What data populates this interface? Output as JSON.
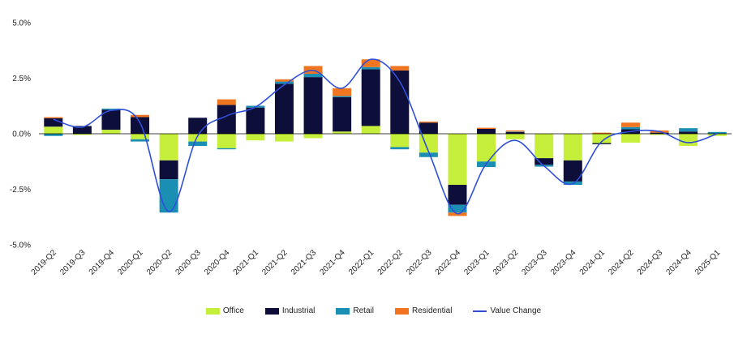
{
  "chart_data": {
    "type": "bar",
    "stacked": true,
    "categories": [
      "2019-Q2",
      "2019-Q3",
      "2019-Q4",
      "2020-Q1",
      "2020-Q2",
      "2020-Q3",
      "2020-Q4",
      "2021-Q1",
      "2021-Q2",
      "2021-Q3",
      "2021-Q4",
      "2022-Q1",
      "2022-Q2",
      "2022-Q3",
      "2022-Q4",
      "2023-Q1",
      "2023-Q2",
      "2023-Q3",
      "2023-Q4",
      "2024-Q1",
      "2024-Q2",
      "2024-Q3",
      "2024-Q4",
      "2025-Q1"
    ],
    "series": [
      {
        "name": "Office",
        "color": "#c5ef3b",
        "values": [
          0.32,
          -0.05,
          0.18,
          -0.25,
          -1.2,
          -0.35,
          -0.65,
          -0.3,
          -0.35,
          -0.2,
          0.1,
          0.35,
          -0.6,
          -0.85,
          -2.3,
          -1.25,
          -0.25,
          -1.1,
          -1.2,
          -0.42,
          -0.4,
          -0.05,
          -0.55,
          -0.1
        ]
      },
      {
        "name": "Industrial",
        "color": "#0d0f3a",
        "values": [
          0.38,
          0.35,
          0.9,
          0.75,
          -0.85,
          0.72,
          1.3,
          1.18,
          2.25,
          2.55,
          1.55,
          2.55,
          2.85,
          0.5,
          -0.9,
          0.22,
          0.08,
          -0.3,
          -0.95,
          -0.05,
          0.2,
          0.05,
          0.1,
          0.0
        ]
      },
      {
        "name": "Retail",
        "color": "#1a8fb3",
        "values": [
          -0.1,
          0.0,
          0.05,
          -0.1,
          -1.5,
          -0.2,
          -0.05,
          0.08,
          0.1,
          0.15,
          0.05,
          0.1,
          -0.1,
          -0.2,
          -0.35,
          -0.25,
          0.02,
          -0.08,
          -0.15,
          0.0,
          0.1,
          0.0,
          0.15,
          0.08
        ]
      },
      {
        "name": "Residential",
        "color": "#f07520",
        "values": [
          0.05,
          0.0,
          0.0,
          0.1,
          0.0,
          0.0,
          0.25,
          0.0,
          0.1,
          0.35,
          0.35,
          0.35,
          0.2,
          0.05,
          -0.15,
          0.05,
          0.05,
          0.0,
          0.0,
          0.05,
          0.2,
          0.1,
          0.0,
          0.0
        ]
      }
    ],
    "line": {
      "name": "Value Change",
      "color": "#2f4fd9",
      "values": [
        0.65,
        0.3,
        1.05,
        0.5,
        -3.5,
        -0.1,
        0.8,
        1.2,
        2.2,
        2.85,
        2.05,
        3.35,
        2.35,
        -0.8,
        -3.6,
        -1.35,
        -0.3,
        -1.45,
        -2.25,
        -0.35,
        0.1,
        0.1,
        -0.4,
        0.0
      ]
    },
    "ylim": [
      -5,
      5
    ],
    "yticks": [
      -5,
      -2.5,
      0,
      2.5,
      5
    ],
    "ytick_labels": [
      "-5.0%",
      "-2.5%",
      "0.0%",
      "2.5%",
      "5.0%"
    ],
    "legend_position": "bottom-center",
    "grid": false
  },
  "legend": {
    "items": [
      {
        "label": "Office",
        "color": "#c5ef3b",
        "kind": "bar"
      },
      {
        "label": "Industrial",
        "color": "#0d0f3a",
        "kind": "bar"
      },
      {
        "label": "Retail",
        "color": "#1a8fb3",
        "kind": "bar"
      },
      {
        "label": "Residential",
        "color": "#f07520",
        "kind": "bar"
      },
      {
        "label": "Value Change",
        "color": "#2f4fd9",
        "kind": "line"
      }
    ]
  }
}
